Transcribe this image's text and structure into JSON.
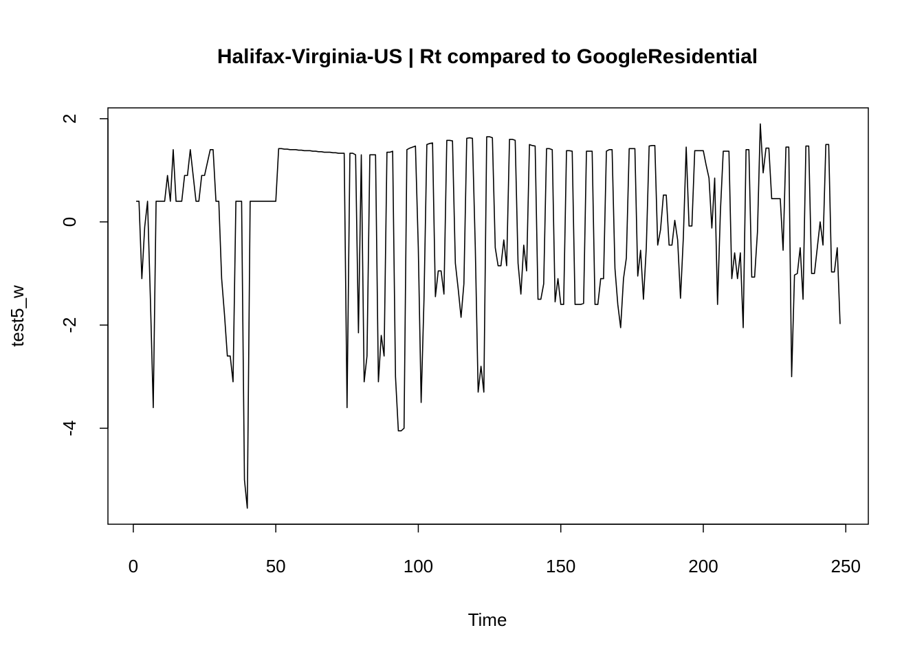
{
  "chart_data": {
    "type": "line",
    "title": "Halifax-Virginia-US | Rt compared to GoogleResidential",
    "xlabel": "Time",
    "ylabel": "test5_w",
    "x": [
      1,
      2,
      3,
      4,
      5,
      6,
      7,
      8,
      9,
      10,
      11,
      12,
      13,
      14,
      15,
      16,
      17,
      18,
      19,
      20,
      21,
      22,
      23,
      24,
      25,
      26,
      27,
      28,
      29,
      30,
      31,
      32,
      33,
      34,
      35,
      36,
      37,
      38,
      39,
      40,
      41,
      42,
      43,
      44,
      45,
      46,
      47,
      48,
      49,
      50,
      51,
      52,
      53,
      54,
      55,
      56,
      57,
      58,
      59,
      60,
      61,
      62,
      63,
      64,
      65,
      66,
      67,
      68,
      69,
      70,
      71,
      72,
      73,
      74,
      75,
      76,
      77,
      78,
      79,
      80,
      81,
      82,
      83,
      84,
      85,
      86,
      87,
      88,
      89,
      90,
      91,
      92,
      93,
      94,
      95,
      96,
      97,
      98,
      99,
      100,
      101,
      102,
      103,
      104,
      105,
      106,
      107,
      108,
      109,
      110,
      111,
      112,
      113,
      114,
      115,
      116,
      117,
      118,
      119,
      120,
      121,
      122,
      123,
      124,
      125,
      126,
      127,
      128,
      129,
      130,
      131,
      132,
      133,
      134,
      135,
      136,
      137,
      138,
      139,
      140,
      141,
      142,
      143,
      144,
      145,
      146,
      147,
      148,
      149,
      150,
      151,
      152,
      153,
      154,
      155,
      156,
      157,
      158,
      159,
      160,
      161,
      162,
      163,
      164,
      165,
      166,
      167,
      168,
      169,
      170,
      171,
      172,
      173,
      174,
      175,
      176,
      177,
      178,
      179,
      180,
      181,
      182,
      183,
      184,
      185,
      186,
      187,
      188,
      189,
      190,
      191,
      192,
      193,
      194,
      195,
      196,
      197,
      198,
      199,
      200,
      201,
      202,
      203,
      204,
      205,
      206,
      207,
      208,
      209,
      210,
      211,
      212,
      213,
      214,
      215,
      216,
      217,
      218,
      219,
      220,
      221,
      222,
      223,
      224,
      225,
      226,
      227,
      228,
      229,
      230,
      231,
      232,
      233,
      234,
      235,
      236,
      237,
      238,
      239,
      240,
      241,
      242,
      243,
      244,
      245,
      246,
      247,
      248
    ],
    "values": [
      0.4,
      0.4,
      -1.1,
      -0.1,
      0.4,
      -1.5,
      -3.6,
      0.4,
      0.4,
      0.4,
      0.4,
      0.9,
      0.4,
      1.4,
      0.4,
      0.4,
      0.4,
      0.9,
      0.9,
      1.4,
      0.9,
      0.4,
      0.4,
      0.9,
      0.9,
      1.15,
      1.4,
      1.4,
      0.4,
      0.4,
      -1.1,
      -1.8,
      -2.6,
      -2.6,
      -3.1,
      0.4,
      0.4,
      0.4,
      -5.0,
      -5.55,
      0.4,
      0.4,
      0.4,
      0.4,
      0.4,
      0.4,
      0.4,
      0.4,
      0.4,
      0.4,
      1.42,
      1.42,
      1.41,
      1.41,
      1.4,
      1.4,
      1.4,
      1.39,
      1.39,
      1.38,
      1.38,
      1.38,
      1.37,
      1.37,
      1.36,
      1.36,
      1.35,
      1.35,
      1.35,
      1.34,
      1.34,
      1.33,
      1.33,
      1.33,
      -3.6,
      1.33,
      1.33,
      1.3,
      -2.15,
      1.3,
      -3.1,
      -2.6,
      1.3,
      1.3,
      1.3,
      -3.1,
      -2.2,
      -2.6,
      1.35,
      1.35,
      1.37,
      -3.0,
      -4.05,
      -4.05,
      -4.0,
      1.4,
      1.43,
      1.45,
      1.47,
      -0.5,
      -3.5,
      -1.5,
      1.5,
      1.52,
      1.53,
      -1.45,
      -0.95,
      -0.95,
      -1.4,
      1.58,
      1.58,
      1.57,
      -0.8,
      -1.3,
      -1.85,
      -1.2,
      1.62,
      1.63,
      1.62,
      -0.5,
      -3.3,
      -2.8,
      -3.3,
      1.65,
      1.65,
      1.63,
      -0.5,
      -0.85,
      -0.85,
      -0.35,
      -0.85,
      1.6,
      1.6,
      1.58,
      -0.8,
      -1.4,
      -0.45,
      -0.95,
      1.5,
      1.48,
      1.47,
      -1.5,
      -1.5,
      -1.2,
      1.42,
      1.42,
      1.4,
      -1.55,
      -1.1,
      -1.6,
      -1.6,
      1.38,
      1.38,
      1.37,
      -1.6,
      -1.6,
      -1.6,
      -1.58,
      1.37,
      1.37,
      1.37,
      -1.6,
      -1.6,
      -1.1,
      -1.1,
      1.37,
      1.4,
      1.4,
      -0.9,
      -1.6,
      -2.05,
      -1.1,
      -0.7,
      1.42,
      1.42,
      1.42,
      -1.05,
      -0.55,
      -1.5,
      -0.5,
      1.47,
      1.48,
      1.48,
      -0.45,
      -0.15,
      0.52,
      0.52,
      -0.45,
      -0.45,
      0.03,
      -0.35,
      -1.48,
      -0.3,
      1.45,
      -0.08,
      -0.08,
      1.38,
      1.38,
      1.38,
      1.38,
      1.1,
      0.85,
      -0.12,
      0.85,
      -1.6,
      0.2,
      1.37,
      1.37,
      1.37,
      -1.1,
      -0.6,
      -1.1,
      -0.6,
      -2.05,
      1.4,
      1.4,
      -1.07,
      -1.07,
      -0.2,
      1.9,
      0.95,
      1.43,
      1.43,
      0.45,
      0.45,
      0.45,
      0.45,
      -0.55,
      1.45,
      1.45,
      -3.0,
      -1.03,
      -1.0,
      -0.5,
      -1.5,
      1.47,
      1.47,
      -1.0,
      -1.0,
      -0.5,
      0.0,
      -0.45,
      1.5,
      1.5,
      -0.97,
      -0.97,
      -0.5,
      -1.98
    ],
    "color": "#000000",
    "xlim": [
      -8.9,
      257.9
    ],
    "ylim": [
      -5.86,
      2.21
    ],
    "xticks": [
      0,
      50,
      100,
      150,
      200,
      250
    ],
    "yticks": [
      -4,
      -2,
      0,
      2
    ]
  }
}
